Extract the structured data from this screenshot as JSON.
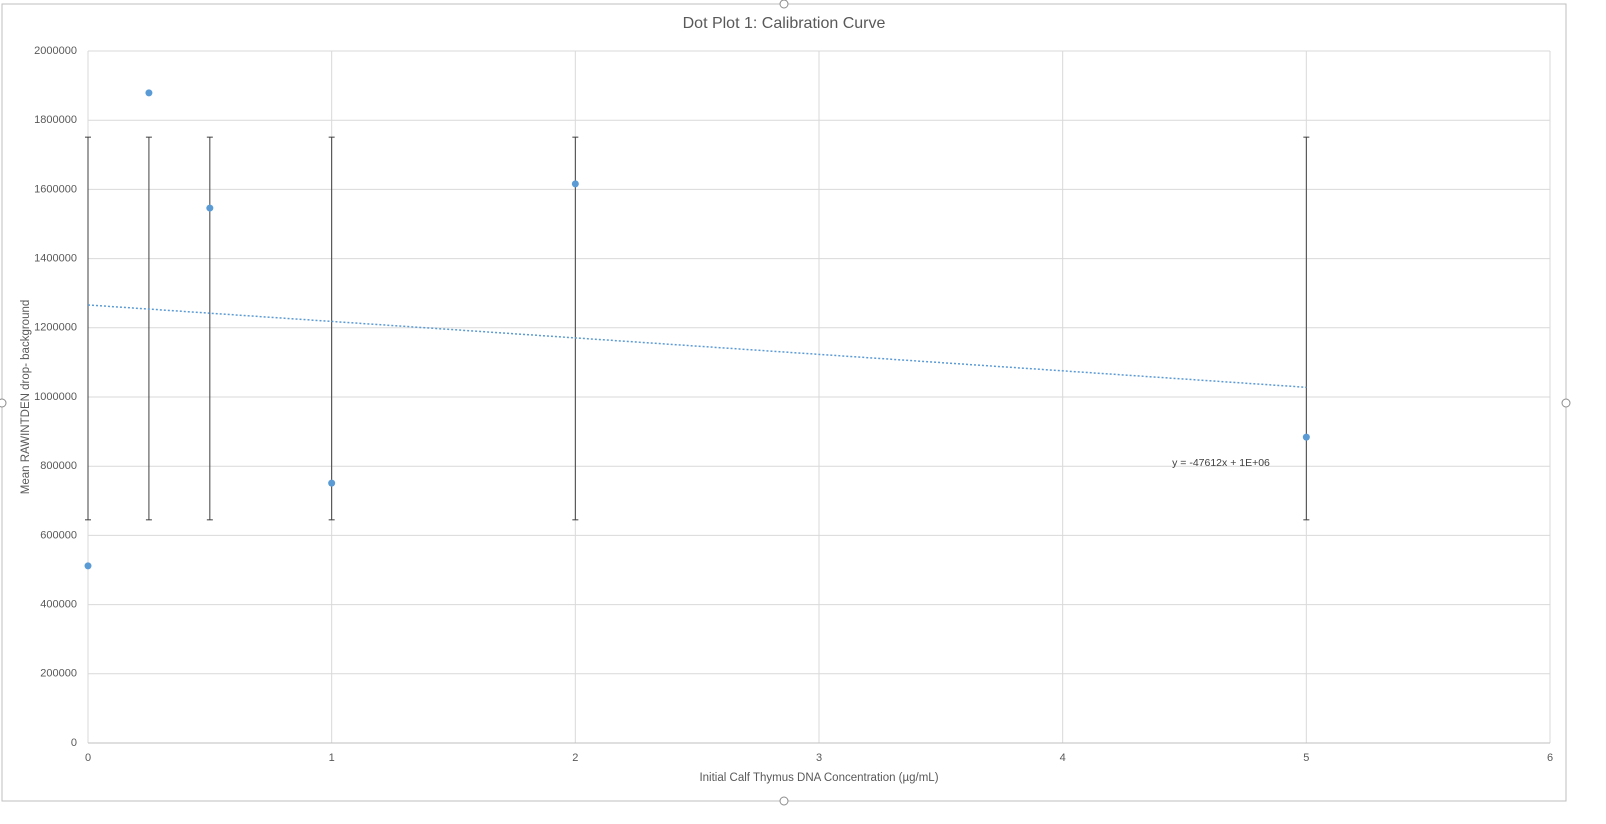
{
  "chart_data": {
    "type": "scatter",
    "title": "Dot Plot 1: Calibration Curve",
    "x_label": "Initial Calf Thymus DNA Concentration (µg/mL)",
    "y_label": "Mean RAWINTDEN drop- background",
    "x": [
      0,
      0.25,
      0.5,
      1,
      2,
      5
    ],
    "values": [
      512000,
      1879000,
      1546000,
      751000,
      1616000,
      884000
    ],
    "color": "#5b9bd5",
    "error_bars": {
      "x": [
        0,
        0.25,
        0.5,
        1,
        2,
        5
      ],
      "low": [
        645000,
        645000,
        645000,
        645000,
        645000,
        645000
      ],
      "high": [
        1751000,
        1751000,
        1751000,
        1751000,
        1751000,
        1751000
      ],
      "color": "#404040"
    },
    "trendline": {
      "x": [
        0,
        5
      ],
      "values": [
        1266000,
        1028000
      ],
      "label": "y = -47612x + 1E+06",
      "color": "#5b9bd5"
    },
    "xlim": [
      0,
      6
    ],
    "xticks": [
      0,
      1,
      2,
      3,
      4,
      5,
      6
    ],
    "ylim": [
      0,
      2000000
    ],
    "yticks": [
      0,
      200000,
      400000,
      600000,
      800000,
      1000000,
      1200000,
      1400000,
      1600000,
      1800000,
      2000000
    ],
    "grid": true
  }
}
